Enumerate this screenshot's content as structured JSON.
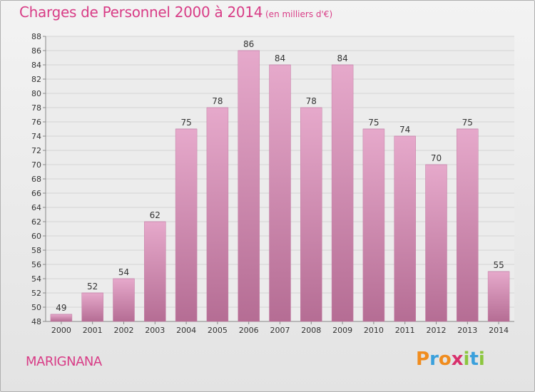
{
  "chart_data": {
    "type": "bar",
    "title": "Charges de Personnel 2000 à 2014",
    "subtitle": "(en milliers d'€)",
    "categories": [
      "2000",
      "2001",
      "2002",
      "2003",
      "2004",
      "2005",
      "2006",
      "2007",
      "2008",
      "2009",
      "2010",
      "2011",
      "2012",
      "2013",
      "2014"
    ],
    "values": [
      49,
      52,
      54,
      62,
      75,
      78,
      86,
      84,
      78,
      84,
      75,
      74,
      70,
      75,
      55
    ],
    "ylim": [
      48,
      88
    ],
    "ytick_step": 2,
    "grid": true,
    "bar_color_top": "#e6a9cb",
    "bar_color_bottom": "#b56d94"
  },
  "commune": "MARIGNANA",
  "logo": {
    "letters": [
      "P",
      "r",
      "o",
      "x",
      "i",
      "t",
      "i"
    ],
    "colors": [
      "#f08c1e",
      "#3aa0dc",
      "#f08c1e",
      "#d8306c",
      "#8cc63e",
      "#3aa0dc",
      "#8cc63e"
    ]
  }
}
